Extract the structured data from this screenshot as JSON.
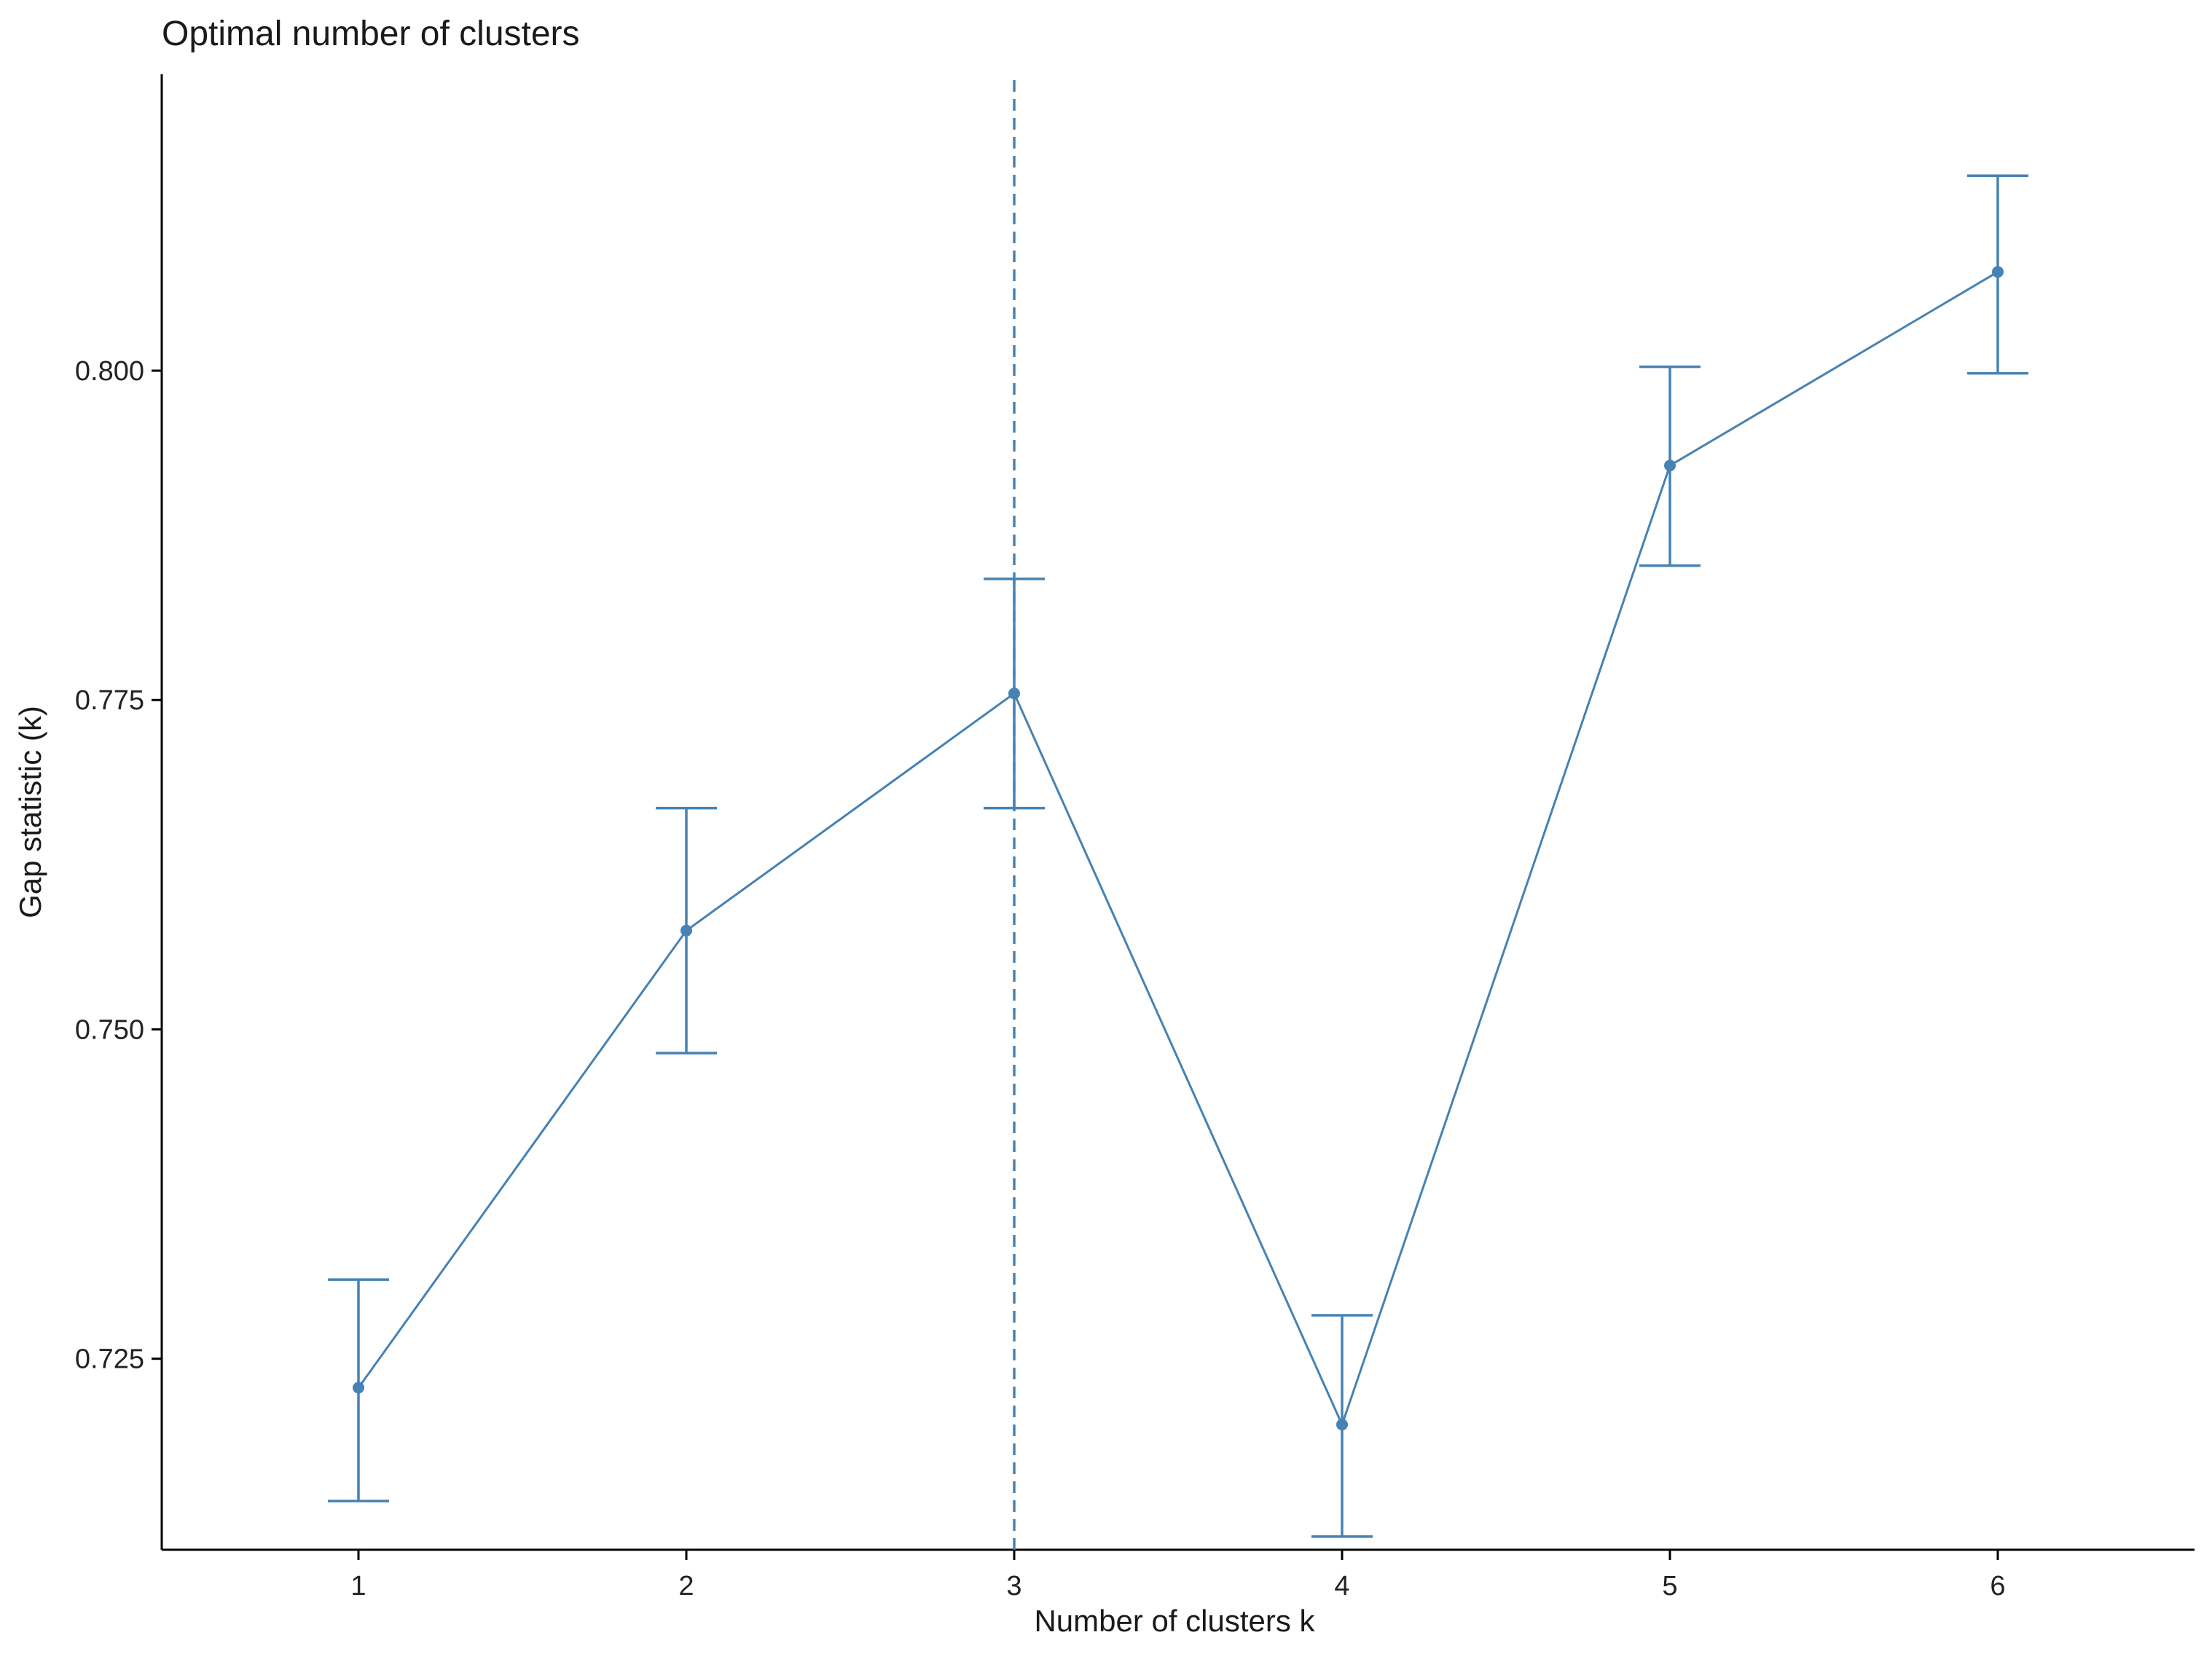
{
  "chart_data": {
    "type": "line",
    "title": "Optimal number of clusters",
    "xlabel": "Number of clusters k",
    "ylabel": "Gap statistic (k)",
    "x": [
      1,
      2,
      3,
      4,
      5,
      6
    ],
    "x_tick_labels": [
      "1",
      "2",
      "3",
      "4",
      "5",
      "6"
    ],
    "y_ticks": [
      0.725,
      0.75,
      0.775,
      0.8
    ],
    "y_tick_labels": [
      "0.725",
      "0.750",
      "0.775",
      "0.800"
    ],
    "xlim": [
      0.4,
      6.6
    ],
    "ylim": [
      0.7105,
      0.8225
    ],
    "series": [
      {
        "values": [
          0.7228,
          0.7575,
          0.7755,
          0.72,
          0.7928,
          0.8075
        ],
        "err_low": [
          0.7142,
          0.7482,
          0.7668,
          0.7115,
          0.7852,
          0.7998
        ],
        "err_high": [
          0.731,
          0.7668,
          0.7842,
          0.7283,
          0.8003,
          0.8148
        ],
        "color": "#4682B4"
      }
    ],
    "vline": {
      "x": 3,
      "style": "dashed",
      "color": "#4682B4"
    },
    "grid": false,
    "legend": "none"
  }
}
